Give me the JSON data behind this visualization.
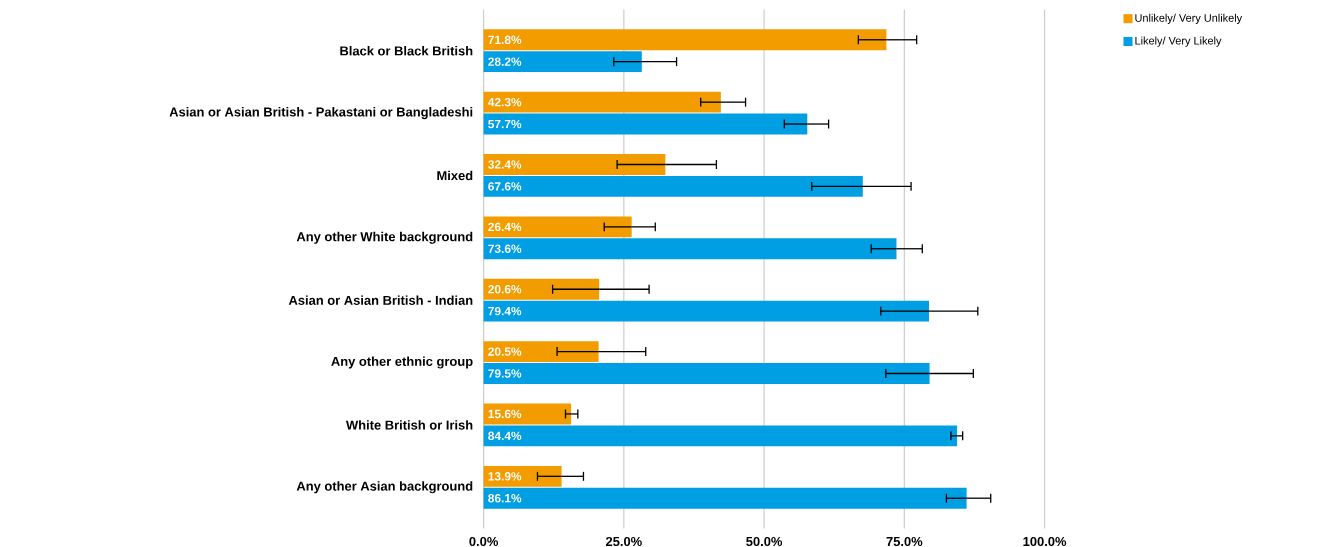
{
  "chart_data": {
    "type": "bar",
    "orientation": "horizontal",
    "categories": [
      "Black or Black British",
      "Asian or Asian British - Pakastani or Bangladeshi",
      "Mixed",
      "Any other White background",
      "Asian or Asian British - Indian",
      "Any other ethnic group",
      "White British or Irish",
      "Any other Asian background"
    ],
    "series": [
      {
        "name": "Unlikely/ Very Unlikely",
        "color": "#f39c00",
        "values": [
          71.8,
          42.3,
          32.4,
          26.4,
          20.6,
          20.5,
          15.6,
          13.9
        ],
        "value_labels": [
          "71.8%",
          "42.3%",
          "32.4%",
          "26.4%",
          "20.6%",
          "20.5%",
          "15.6%",
          "13.9%"
        ],
        "errors": [
          [
            66.8,
            77.2
          ],
          [
            38.7,
            46.7
          ],
          [
            23.8,
            41.5
          ],
          [
            21.5,
            30.6
          ],
          [
            12.3,
            29.5
          ],
          [
            13.1,
            28.9
          ],
          [
            14.6,
            16.8
          ],
          [
            9.6,
            17.8
          ]
        ]
      },
      {
        "name": "Likely/ Very Likely",
        "color": "#009fe3",
        "values": [
          28.2,
          57.7,
          67.6,
          73.6,
          79.4,
          79.5,
          84.4,
          86.1
        ],
        "value_labels": [
          "28.2%",
          "57.7%",
          "67.6%",
          "73.6%",
          "79.4%",
          "79.5%",
          "84.4%",
          "86.1%"
        ],
        "errors": [
          [
            23.2,
            34.4
          ],
          [
            53.6,
            61.5
          ],
          [
            58.5,
            76.2
          ],
          [
            69.1,
            78.2
          ],
          [
            70.8,
            88.1
          ],
          [
            71.7,
            87.3
          ],
          [
            83.3,
            85.4
          ],
          [
            82.5,
            90.4
          ]
        ]
      }
    ],
    "xlim": [
      0,
      100
    ],
    "xticks": [
      {
        "value": 0,
        "label": "0.0%"
      },
      {
        "value": 25,
        "label": "25.0%"
      },
      {
        "value": 50,
        "label": "50.0%"
      },
      {
        "value": 75,
        "label": "75.0%"
      },
      {
        "value": 100,
        "label": "100.0%"
      }
    ],
    "grid": "x",
    "legend": "top right"
  }
}
